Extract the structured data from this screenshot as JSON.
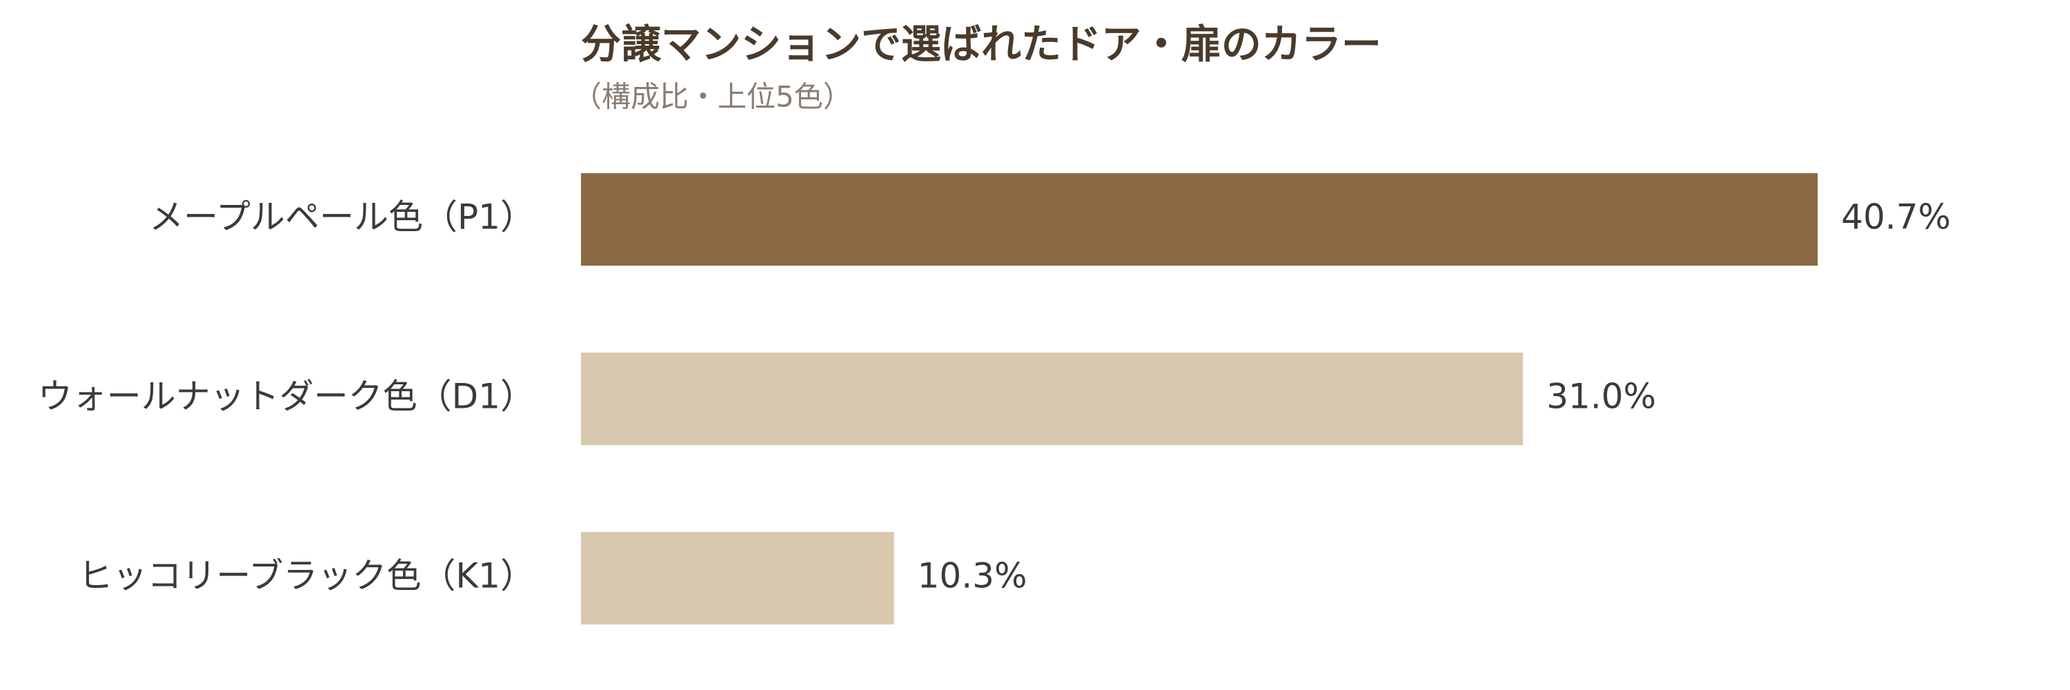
{
  "chart_data": {
    "type": "bar",
    "orientation": "horizontal",
    "title": "分譲マンションで選ばれたドア・扉のカラー",
    "subtitle": "（構成比・上位5色）",
    "categories": [
      "メープルペール色（P1）",
      "ウォールナットダーク色（D1）",
      "ヒッコリーブラック色（K1）"
    ],
    "values": [
      40.7,
      31.0,
      10.3
    ],
    "value_labels": [
      "40.7%",
      "31.0%",
      "10.3%"
    ],
    "colors": [
      "#8b6a45",
      "#d8c8ae",
      "#d8c8ae"
    ]
  }
}
